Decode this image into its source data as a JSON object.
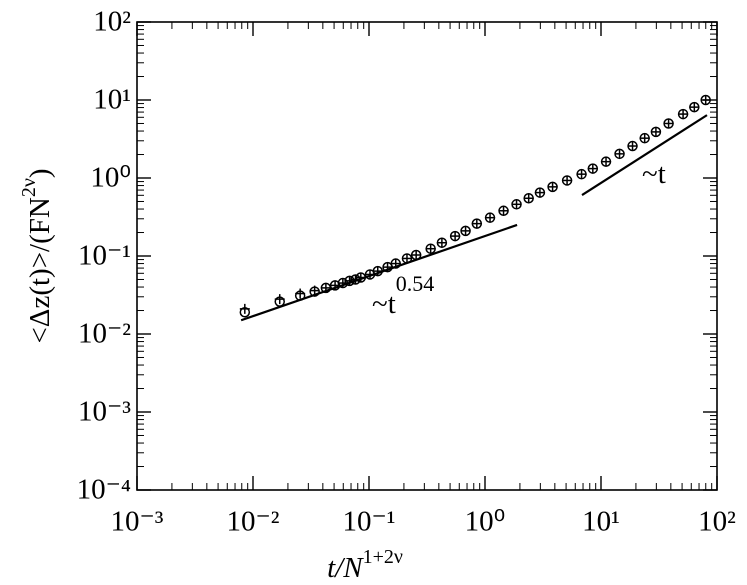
{
  "chart_data": {
    "type": "scatter",
    "xlabel": {
      "text": "t/N",
      "sup": "1+2ν"
    },
    "ylabel": {
      "text": "<Δz(t)>/(FN",
      "sup": "2ν",
      "tail": ")"
    },
    "xscale": "log",
    "yscale": "log",
    "xlim": [
      0.001,
      100
    ],
    "ylim": [
      0.0001,
      100
    ],
    "xticks": [
      {
        "value": 0.001,
        "label": "10⁻³"
      },
      {
        "value": 0.01,
        "label": "10⁻²"
      },
      {
        "value": 0.1,
        "label": "10⁻¹"
      },
      {
        "value": 1,
        "label": "10⁰"
      },
      {
        "value": 10,
        "label": "10¹"
      },
      {
        "value": 100,
        "label": "10²"
      }
    ],
    "yticks": [
      {
        "value": 0.0001,
        "label": "10⁻⁴"
      },
      {
        "value": 0.001,
        "label": "10⁻³"
      },
      {
        "value": 0.01,
        "label": "10⁻²"
      },
      {
        "value": 0.1,
        "label": "10⁻¹"
      },
      {
        "value": 1,
        "label": "10⁰"
      },
      {
        "value": 10,
        "label": "10¹"
      },
      {
        "value": 100,
        "label": "10²"
      }
    ],
    "x": [
      0.0085,
      0.017,
      0.0255,
      0.034,
      0.0425,
      0.051,
      0.0595,
      0.068,
      0.0765,
      0.085,
      0.102,
      0.119,
      0.1445,
      0.17,
      0.2125,
      0.255,
      0.34,
      0.425,
      0.5525,
      0.68,
      0.85,
      1.105,
      1.445,
      1.87,
      2.38,
      2.975,
      3.825,
      5.1,
      6.8,
      8.5,
      11.05,
      14.45,
      18.7,
      23.8,
      29.75,
      38.25,
      51,
      63.75,
      79.9
    ],
    "series": [
      {
        "marker": "circle",
        "color": "#000000",
        "values": [
          0.019,
          0.026,
          0.031,
          0.035,
          0.039,
          0.042,
          0.045,
          0.048,
          0.05,
          0.053,
          0.058,
          0.064,
          0.072,
          0.08,
          0.093,
          0.103,
          0.124,
          0.148,
          0.18,
          0.21,
          0.26,
          0.31,
          0.38,
          0.46,
          0.55,
          0.65,
          0.77,
          0.93,
          1.12,
          1.32,
          1.62,
          2.04,
          2.57,
          3.24,
          3.9,
          5.0,
          6.6,
          8.1,
          10
        ]
      },
      {
        "marker": "plus",
        "color": "#000000",
        "values": [
          0.021,
          0.028,
          0.033,
          0.036,
          0.039,
          0.042,
          0.045,
          0.048,
          0.05,
          0.053,
          0.058,
          0.064,
          0.072,
          0.08,
          0.093,
          0.103,
          0.124,
          0.148,
          0.18,
          0.21,
          0.26,
          0.31,
          0.38,
          0.46,
          0.55,
          0.65,
          0.77,
          0.93,
          1.12,
          1.32,
          1.62,
          2.04,
          2.57,
          3.24,
          3.9,
          5.0,
          6.6,
          8.1,
          10
        ]
      }
    ],
    "guides": [
      {
        "x": [
          0.0079,
          1.89
        ],
        "y": [
          0.015,
          0.25
        ]
      },
      {
        "x": [
          6.86,
          82
        ],
        "y": [
          0.605,
          6.4
        ]
      }
    ],
    "annotations": [
      {
        "text": "~t",
        "sup": "0.54"
      },
      {
        "text": "~t"
      }
    ]
  }
}
